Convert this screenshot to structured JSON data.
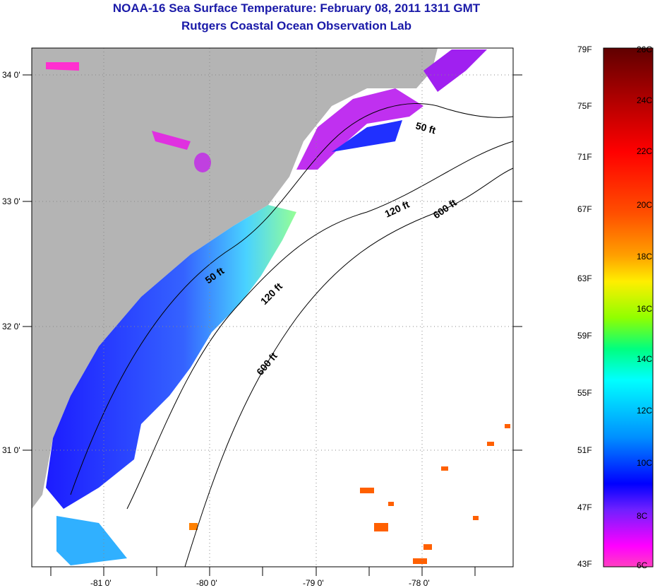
{
  "title": "NOAA-16 Sea Surface Temperature:  February 08, 2011 1311 GMT",
  "subtitle": "Rutgers Coastal Ocean Observation Lab",
  "map": {
    "lat_labels": [
      "34 0'",
      "33 0'",
      "32 0'",
      "31 0'"
    ],
    "lon_labels": [
      "-81 0'",
      "-80 0'",
      "-79 0'",
      "-78 0'"
    ],
    "contours": {
      "c50a": "50 ft",
      "c50b": "50 ft",
      "c120a": "120 ft",
      "c120b": "120 ft",
      "c600a": "600 ft",
      "c600b": "600 ft"
    },
    "land_color": "#b4b4b4"
  },
  "colorbar": {
    "f_labels": [
      "79F",
      "75F",
      "71F",
      "67F",
      "63F",
      "59F",
      "55F",
      "51F",
      "47F",
      "43F"
    ],
    "c_labels": [
      "26C",
      "24C",
      "22C",
      "20C",
      "18C",
      "16C",
      "14C",
      "12C",
      "10C",
      "8C",
      "6C"
    ]
  }
}
